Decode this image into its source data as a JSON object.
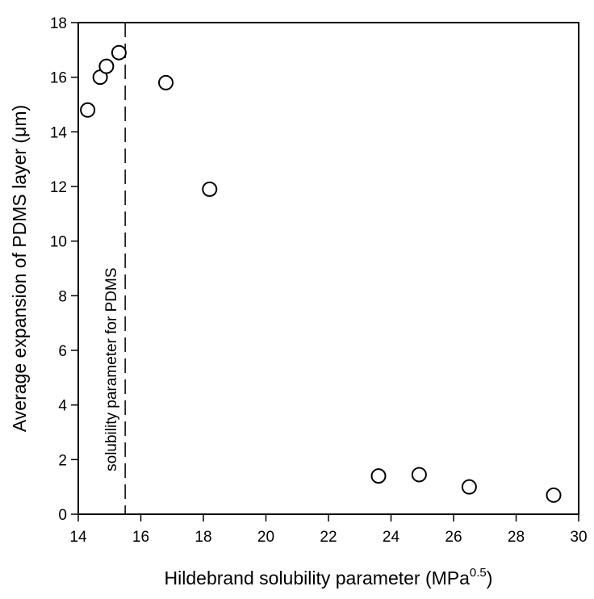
{
  "chart_data": {
    "type": "scatter",
    "xlabel": "Hildebrand solubility parameter (MPa",
    "xlabel_sup": "0.5",
    "xlabel_end": ")",
    "ylabel": "Average expansion of PDMS layer (μm)",
    "xlim": [
      14,
      30
    ],
    "ylim": [
      0,
      18
    ],
    "x_ticks": [
      "14",
      "16",
      "18",
      "20",
      "22",
      "24",
      "26",
      "28",
      "30"
    ],
    "y_ticks": [
      "0",
      "2",
      "4",
      "6",
      "8",
      "10",
      "12",
      "14",
      "16",
      "18"
    ],
    "grid": false,
    "marker": "open-circle",
    "points": [
      {
        "x": 14.3,
        "y": 14.8
      },
      {
        "x": 14.7,
        "y": 16.0
      },
      {
        "x": 14.9,
        "y": 16.4
      },
      {
        "x": 15.3,
        "y": 16.9
      },
      {
        "x": 16.8,
        "y": 15.8
      },
      {
        "x": 18.2,
        "y": 11.9
      },
      {
        "x": 23.6,
        "y": 1.4
      },
      {
        "x": 24.9,
        "y": 1.45
      },
      {
        "x": 26.5,
        "y": 1.0
      },
      {
        "x": 29.2,
        "y": 0.7
      }
    ],
    "reference_line": {
      "x": 15.5,
      "style": "dashed",
      "label": "solubility parameter for PDMS"
    }
  }
}
